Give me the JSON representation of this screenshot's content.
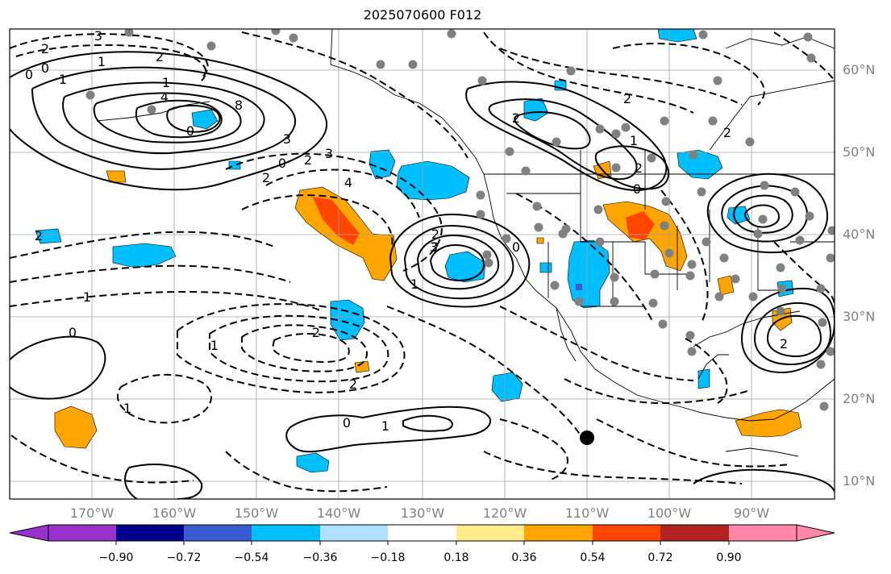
{
  "title": "2025070600 F012",
  "lat_labels": [
    "60°N",
    "50°N",
    "40°N",
    "30°N",
    "20°N",
    "10°N"
  ],
  "lon_labels": [
    "170°W",
    "160°W",
    "150°W",
    "140°W",
    "130°W",
    "120°W",
    "110°W",
    "100°W",
    "90°W"
  ],
  "colorbar": {
    "ticks": [
      "−0.90",
      "−0.72",
      "−0.54",
      "−0.36",
      "−0.18",
      "0.18",
      "0.36",
      "0.54",
      "0.72",
      "0.90"
    ],
    "colors": [
      "#9932cc",
      "#00008b",
      "#3a5bd1",
      "#00bfff",
      "#b0e2ff",
      "#ffffff",
      "#ffec8b",
      "#ffa500",
      "#ff4500",
      "#b22222",
      "#ff88aa"
    ]
  },
  "contour_labels": [
    "3",
    "2",
    "0",
    "1",
    "2",
    "1",
    "0",
    "1",
    "4",
    "8",
    "0",
    "3",
    "2",
    "0",
    "2",
    "3",
    "4",
    "2",
    "2",
    "1",
    "0",
    "1",
    "2",
    "3",
    "2",
    "2",
    "1",
    "0",
    "2",
    "1",
    "0",
    "1",
    "1",
    "0",
    "2",
    "2",
    "2",
    "2"
  ],
  "colors": {
    "positive_shade": "#ffa500",
    "strong_positive": "#ff4500",
    "negative_shade": "#00bfff",
    "contour": "#000000",
    "station": "#808080"
  }
}
